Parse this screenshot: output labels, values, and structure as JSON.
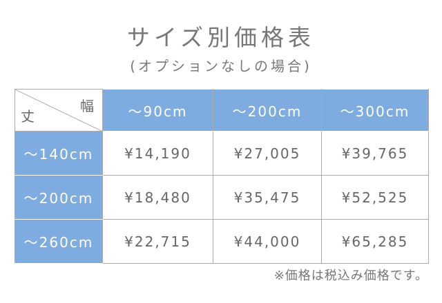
{
  "title": "サイズ別価格表",
  "subtitle": "(オプションなしの場合)",
  "table": {
    "corner": {
      "width_label": "幅",
      "height_label": "丈"
    },
    "columns": [
      "～90cm",
      "～200cm",
      "～300cm"
    ],
    "rows": [
      {
        "label": "～140cm",
        "prices": [
          "¥14,190",
          "¥27,005",
          "¥39,765"
        ]
      },
      {
        "label": "～200cm",
        "prices": [
          "¥18,480",
          "¥35,475",
          "¥52,525"
        ]
      },
      {
        "label": "～260cm",
        "prices": [
          "¥22,715",
          "¥44,000",
          "¥65,285"
        ]
      }
    ]
  },
  "note": "※価格は税込み価格です。",
  "colors": {
    "header": "#7eace0",
    "text": "#666666",
    "border": "#aaaaaa"
  }
}
